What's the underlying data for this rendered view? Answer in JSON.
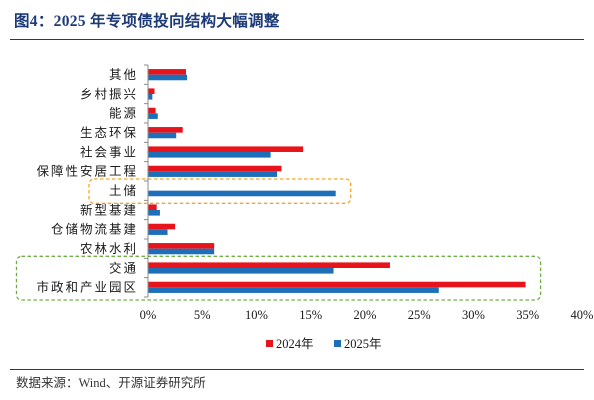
{
  "colors": {
    "title": "#1C3A78",
    "rule": "#1C3A78"
  },
  "source": "数据来源：Wind、开源证券研究所",
  "chart_data": {
    "type": "bar",
    "orientation": "horizontal",
    "title": "图4：2025 年专项债投向结构大幅调整",
    "categories": [
      "其他",
      "乡村振兴",
      "能源",
      "生态环保",
      "社会事业",
      "保障性安居工程",
      "土储",
      "新型基建",
      "仓储物流基建",
      "农林水利",
      "交通",
      "市政和产业园区"
    ],
    "series": [
      {
        "name": "2024年",
        "color": "#E8141B",
        "values": [
          3.5,
          0.6,
          0.7,
          3.2,
          14.3,
          12.3,
          0,
          0.8,
          2.5,
          6.1,
          22.3,
          34.8
        ]
      },
      {
        "name": "2025年",
        "color": "#1E6FBA",
        "values": [
          3.6,
          0.4,
          0.9,
          2.6,
          11.3,
          11.9,
          17.3,
          1.1,
          1.8,
          6.1,
          17.1,
          26.8
        ]
      }
    ],
    "xlim": [
      0,
      40
    ],
    "x_ticks": [
      "0%",
      "5%",
      "10%",
      "15%",
      "20%",
      "25%",
      "30%",
      "35%",
      "40%"
    ],
    "grid": false,
    "legend_position": "bottom",
    "highlight_colors": [
      null,
      null,
      null,
      null,
      null,
      null,
      "#F5A623",
      null,
      null,
      null,
      "#70AD47",
      "#70AD47"
    ]
  }
}
